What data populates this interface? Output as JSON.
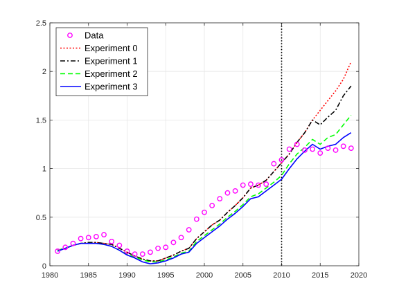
{
  "chart_data": {
    "type": "line",
    "title": "",
    "xlabel": "",
    "ylabel": "",
    "xlim": [
      1980,
      2020
    ],
    "ylim": [
      0,
      2.5
    ],
    "xticks": [
      1980,
      1985,
      1990,
      1995,
      2000,
      2005,
      2010,
      2015,
      2020
    ],
    "yticks": [
      0,
      0.5,
      1,
      1.5,
      2,
      2.5
    ],
    "xtick_labels": [
      "1980",
      "1985",
      "1990",
      "1995",
      "2000",
      "2005",
      "2010",
      "2015",
      "2020"
    ],
    "ytick_labels": [
      "0",
      "0.5",
      "1",
      "1.5",
      "2",
      "2.5"
    ],
    "grid": true,
    "legend_position": "top-left",
    "vertical_line": {
      "x": 2010,
      "style": "dotted",
      "color": "#000000"
    },
    "data_points": {
      "name": "Data",
      "color": "#ff00ff",
      "marker": "circle",
      "x": [
        1981,
        1982,
        1983,
        1984,
        1985,
        1986,
        1987,
        1988,
        1989,
        1990,
        1991,
        1992,
        1993,
        1994,
        1995,
        1996,
        1997,
        1998,
        1999,
        2000,
        2001,
        2002,
        2003,
        2004,
        2005,
        2006,
        2007,
        2008,
        2009,
        2010,
        2011,
        2012,
        2013,
        2014,
        2015,
        2016,
        2017,
        2018,
        2019
      ],
      "y": [
        0.15,
        0.19,
        0.23,
        0.28,
        0.29,
        0.3,
        0.32,
        0.25,
        0.21,
        0.15,
        0.12,
        0.12,
        0.14,
        0.18,
        0.19,
        0.24,
        0.29,
        0.37,
        0.48,
        0.55,
        0.62,
        0.69,
        0.75,
        0.77,
        0.83,
        0.84,
        0.83,
        0.84,
        1.05,
        1.09,
        1.2,
        1.25,
        1.19,
        1.2,
        1.16,
        1.21,
        1.19,
        1.23,
        1.21
      ]
    },
    "series": [
      {
        "name": "Experiment 0",
        "color": "#ff0000",
        "dash": "2,2.5",
        "x": [
          1981,
          1982,
          1983,
          1984,
          1985,
          1986,
          1987,
          1988,
          1989,
          1990,
          1991,
          1992,
          1993,
          1994,
          1995,
          1996,
          1997,
          1998,
          1999,
          2000,
          2001,
          2002,
          2003,
          2004,
          2005,
          2006,
          2007,
          2008,
          2009,
          2010,
          2011,
          2012,
          2013,
          2014,
          2015,
          2016,
          2017,
          2018,
          2019
        ],
        "y": [
          0.16,
          0.18,
          0.21,
          0.23,
          0.24,
          0.24,
          0.23,
          0.22,
          0.18,
          0.14,
          0.1,
          0.07,
          0.05,
          0.05,
          0.08,
          0.11,
          0.15,
          0.18,
          0.28,
          0.35,
          0.42,
          0.47,
          0.55,
          0.62,
          0.7,
          0.8,
          0.83,
          0.88,
          0.97,
          1.06,
          1.15,
          1.27,
          1.37,
          1.5,
          1.6,
          1.7,
          1.8,
          1.92,
          2.1
        ]
      },
      {
        "name": "Experiment 1",
        "color": "#000000",
        "dash": "7,3,2,3",
        "x": [
          1981,
          1982,
          1983,
          1984,
          1985,
          1986,
          1987,
          1988,
          1989,
          1990,
          1991,
          1992,
          1993,
          1994,
          1995,
          1996,
          1997,
          1998,
          1999,
          2000,
          2001,
          2002,
          2003,
          2004,
          2005,
          2006,
          2007,
          2008,
          2009,
          2010,
          2011,
          2012,
          2013,
          2014,
          2015,
          2016,
          2017,
          2018,
          2019
        ],
        "y": [
          0.16,
          0.18,
          0.21,
          0.23,
          0.24,
          0.24,
          0.23,
          0.22,
          0.18,
          0.14,
          0.1,
          0.07,
          0.05,
          0.05,
          0.08,
          0.11,
          0.15,
          0.18,
          0.28,
          0.35,
          0.42,
          0.47,
          0.55,
          0.62,
          0.7,
          0.8,
          0.83,
          0.88,
          0.97,
          1.06,
          1.15,
          1.27,
          1.37,
          1.5,
          1.45,
          1.53,
          1.6,
          1.75,
          1.85
        ]
      },
      {
        "name": "Experiment 2",
        "color": "#00ff00",
        "dash": "7,4",
        "x": [
          1981,
          1982,
          1983,
          1984,
          1985,
          1986,
          1987,
          1988,
          1989,
          1990,
          1991,
          1992,
          1993,
          1994,
          1995,
          1996,
          1997,
          1998,
          1999,
          2000,
          2001,
          2002,
          2003,
          2004,
          2005,
          2006,
          2007,
          2008,
          2009,
          2010,
          2011,
          2012,
          2013,
          2014,
          2015,
          2016,
          2017,
          2018,
          2019
        ],
        "y": [
          0.16,
          0.18,
          0.21,
          0.23,
          0.23,
          0.23,
          0.22,
          0.2,
          0.16,
          0.12,
          0.09,
          0.06,
          0.04,
          0.04,
          0.06,
          0.09,
          0.13,
          0.15,
          0.25,
          0.31,
          0.37,
          0.43,
          0.5,
          0.56,
          0.63,
          0.71,
          0.74,
          0.8,
          0.86,
          0.93,
          1.05,
          1.15,
          1.22,
          1.3,
          1.25,
          1.32,
          1.35,
          1.45,
          1.55
        ]
      },
      {
        "name": "Experiment 3",
        "color": "#0000ff",
        "dash": "",
        "x": [
          1981,
          1982,
          1983,
          1984,
          1985,
          1986,
          1987,
          1988,
          1989,
          1990,
          1991,
          1992,
          1993,
          1994,
          1995,
          1996,
          1997,
          1998,
          1999,
          2000,
          2001,
          2002,
          2003,
          2004,
          2005,
          2006,
          2007,
          2008,
          2009,
          2010,
          2011,
          2012,
          2013,
          2014,
          2015,
          2016,
          2017,
          2018,
          2019
        ],
        "y": [
          0.15,
          0.18,
          0.21,
          0.23,
          0.23,
          0.23,
          0.22,
          0.2,
          0.16,
          0.11,
          0.08,
          0.04,
          0.02,
          0.03,
          0.05,
          0.08,
          0.12,
          0.14,
          0.23,
          0.29,
          0.35,
          0.41,
          0.48,
          0.54,
          0.61,
          0.69,
          0.71,
          0.77,
          0.83,
          0.89,
          1.0,
          1.1,
          1.18,
          1.25,
          1.2,
          1.23,
          1.25,
          1.32,
          1.37
        ]
      }
    ]
  }
}
